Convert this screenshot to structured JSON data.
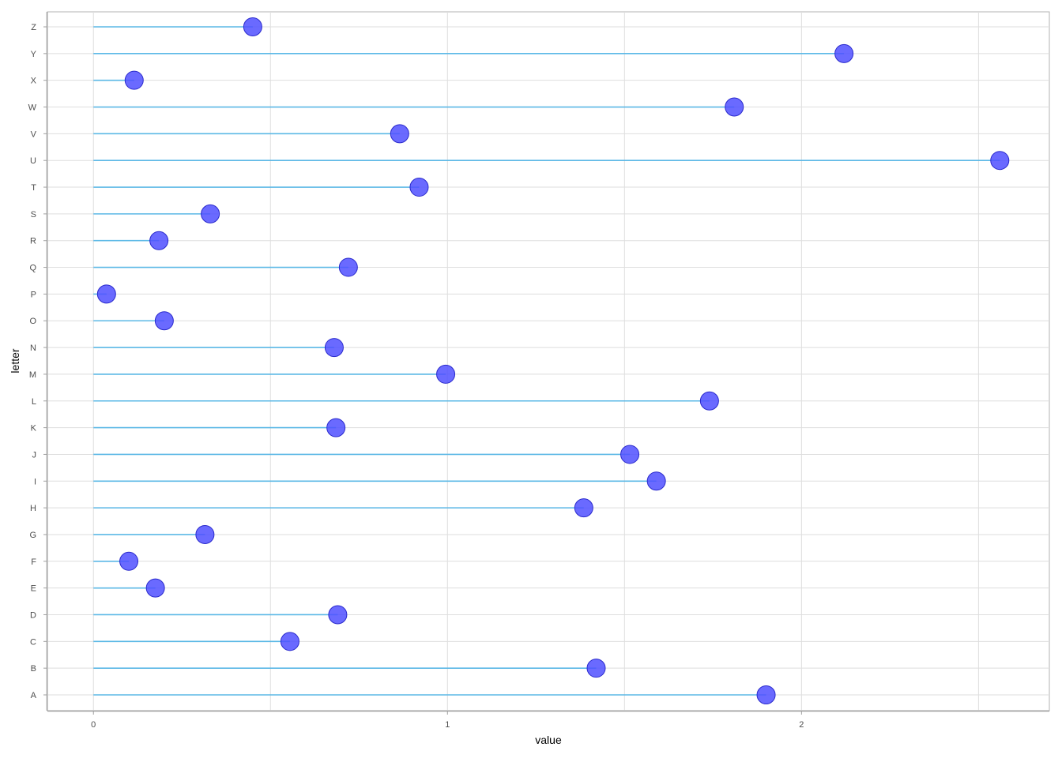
{
  "chart_data": {
    "type": "lollipop",
    "orientation": "horizontal",
    "title": "",
    "xlabel": "value",
    "ylabel": "letter",
    "xlim": [
      -0.13,
      2.7
    ],
    "x_ticks": [
      0,
      1,
      2
    ],
    "x_tick_labels": [
      "0",
      "1",
      "2"
    ],
    "grid": true,
    "colors": {
      "stem": "#5bb8e6",
      "point_fill": "#5050ff",
      "point_stroke": "#2a2acc",
      "grid": "#dedede",
      "axis": "#a0a0a0",
      "panel_border": "#b3b3b3",
      "tick_text": "#4d4d4d",
      "label_text": "#000000"
    },
    "categories": [
      "A",
      "B",
      "C",
      "D",
      "E",
      "F",
      "G",
      "H",
      "I",
      "J",
      "K",
      "L",
      "M",
      "N",
      "O",
      "P",
      "Q",
      "R",
      "S",
      "T",
      "U",
      "V",
      "W",
      "X",
      "Y",
      "Z"
    ],
    "values": [
      1.9,
      1.42,
      0.555,
      0.69,
      0.175,
      0.1,
      0.315,
      1.385,
      1.59,
      1.515,
      0.685,
      1.74,
      0.995,
      0.68,
      0.2,
      0.037,
      0.72,
      0.185,
      0.33,
      0.92,
      2.56,
      0.865,
      1.81,
      0.115,
      2.12,
      0.45
    ]
  }
}
